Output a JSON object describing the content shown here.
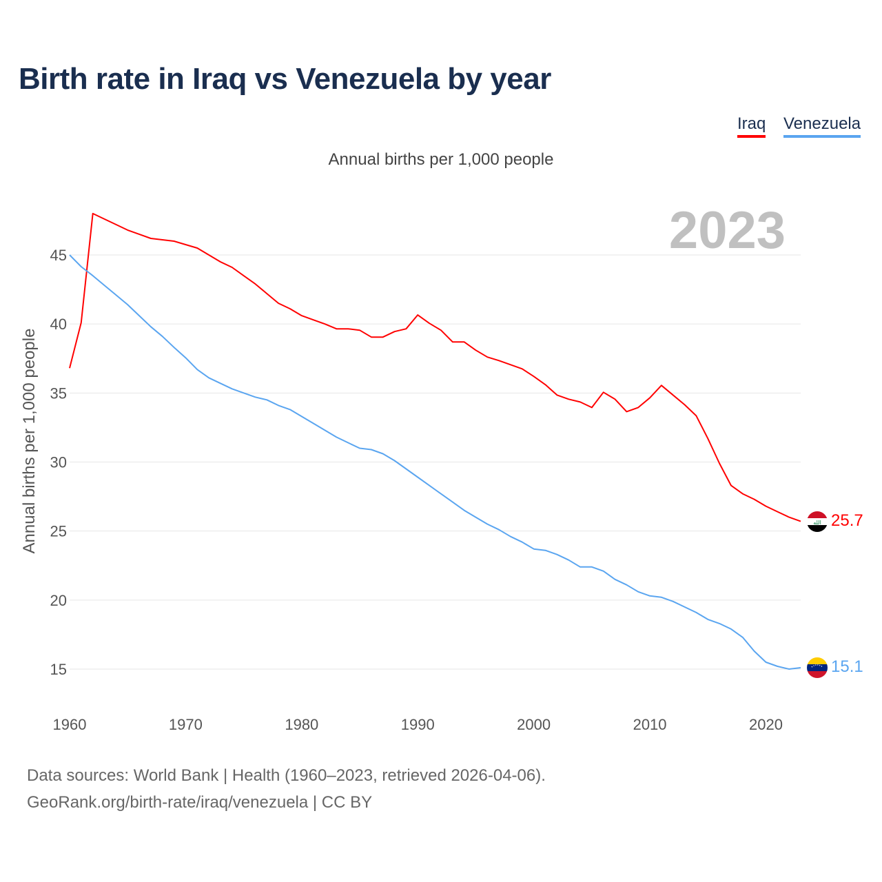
{
  "title": "Birth rate in Iraq vs Venezuela by year",
  "legend": [
    {
      "label": "Iraq",
      "color": "#ff0000"
    },
    {
      "label": "Venezuela",
      "color": "#5aa5f0"
    }
  ],
  "subtitle": "Annual births per 1,000 people",
  "year_label": "2023",
  "source_line1": "Data sources: World Bank | Health (1960–2023, retrieved 2026-04-06).",
  "source_line2": "GeoRank.org/birth-rate/iraq/venezuela | CC BY",
  "chart_data": {
    "type": "line",
    "title": "Birth rate in Iraq vs Venezuela by year",
    "xlabel": "",
    "ylabel": "Annual births per 1,000 people",
    "xlim": [
      1960,
      2023
    ],
    "ylim": [
      12.5,
      48.5
    ],
    "x_ticks": [
      1960,
      1970,
      1980,
      1990,
      2000,
      2010,
      2020
    ],
    "y_ticks": [
      15,
      20,
      25,
      30,
      35,
      40,
      45
    ],
    "grid": true,
    "legend_position": "top-right",
    "x_start": 1960,
    "series": [
      {
        "name": "Iraq",
        "color": "#ff0000",
        "end_label": "25.7",
        "values": [
          36.8,
          40.1,
          48.0,
          47.6,
          47.2,
          46.8,
          46.5,
          46.2,
          46.1,
          46.0,
          45.75,
          45.5,
          45.0,
          44.5,
          44.1,
          43.5,
          42.9,
          42.2,
          41.5,
          41.1,
          40.6,
          40.3,
          40.0,
          39.65,
          39.65,
          39.55,
          39.05,
          39.05,
          39.45,
          39.65,
          40.65,
          40.05,
          39.55,
          38.7,
          38.7,
          38.1,
          37.6,
          37.35,
          37.05,
          36.75,
          36.2,
          35.6,
          34.85,
          34.55,
          34.35,
          33.95,
          35.05,
          34.55,
          33.65,
          33.95,
          34.65,
          35.55,
          34.85,
          34.15,
          33.35,
          31.7,
          29.9,
          28.3,
          27.7,
          27.3,
          26.8,
          26.4,
          26.0,
          25.7
        ]
      },
      {
        "name": "Venezuela",
        "color": "#5aa5f0",
        "end_label": "15.1",
        "values": [
          45.0,
          44.15,
          43.5,
          42.8,
          42.1,
          41.4,
          40.6,
          39.8,
          39.1,
          38.3,
          37.55,
          36.7,
          36.1,
          35.7,
          35.3,
          35.0,
          34.7,
          34.5,
          34.1,
          33.8,
          33.3,
          32.8,
          32.3,
          31.8,
          31.4,
          31.0,
          30.9,
          30.6,
          30.1,
          29.5,
          28.9,
          28.3,
          27.7,
          27.1,
          26.5,
          26.0,
          25.5,
          25.1,
          24.6,
          24.2,
          23.7,
          23.6,
          23.3,
          22.9,
          22.4,
          22.4,
          22.1,
          21.5,
          21.1,
          20.6,
          20.3,
          20.2,
          19.9,
          19.5,
          19.1,
          18.6,
          18.3,
          17.9,
          17.3,
          16.3,
          15.5,
          15.2,
          15.0,
          15.1
        ]
      }
    ]
  }
}
